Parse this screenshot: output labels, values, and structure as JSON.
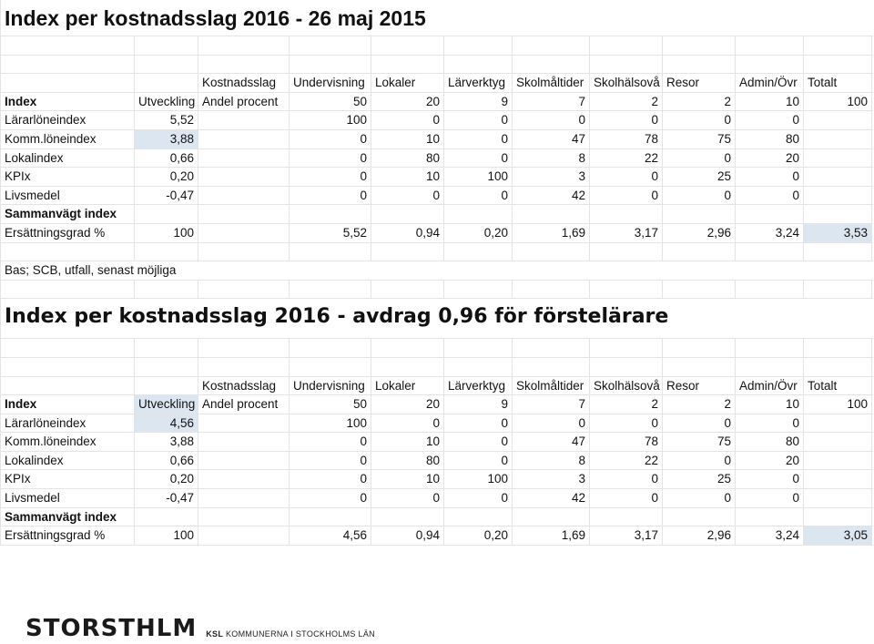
{
  "section1": {
    "title": "Index per kostnadsslag 2016 - 26 maj 2015",
    "headers": [
      "",
      "",
      "Kostnadsslag",
      "Undervisning",
      "Lokaler",
      "Lärverktyg",
      "Skolmåltider",
      "Skolhälsovå",
      "Resor",
      "Admin/Övr",
      "Totalt"
    ],
    "index_row": [
      "Index",
      "Utveckling",
      "Andel procent",
      "50",
      "20",
      "9",
      "7",
      "2",
      "2",
      "10",
      "100"
    ],
    "rows": [
      [
        "Lärarlöneindex",
        "5,52",
        "",
        "100",
        "0",
        "0",
        "0",
        "0",
        "0",
        "0",
        ""
      ],
      [
        "Komm.löneindex",
        "3,88",
        "",
        "0",
        "10",
        "0",
        "47",
        "78",
        "75",
        "80",
        ""
      ],
      [
        "Lokalindex",
        "0,66",
        "",
        "0",
        "80",
        "0",
        "8",
        "22",
        "0",
        "20",
        ""
      ],
      [
        "KPIx",
        "0,20",
        "",
        "0",
        "10",
        "100",
        "3",
        "0",
        "25",
        "0",
        ""
      ],
      [
        "Livsmedel",
        "-0,47",
        "",
        "0",
        "0",
        "0",
        "42",
        "0",
        "0",
        "0",
        ""
      ]
    ],
    "weighted_label": "Sammanvägt index",
    "comp_row": [
      "Ersättningsgrad %",
      "100",
      "",
      "5,52",
      "0,94",
      "0,20",
      "1,69",
      "3,17",
      "2,96",
      "3,24",
      "3,53"
    ]
  },
  "source_note": "Bas; SCB, utfall, senast möjliga",
  "section2": {
    "title": "Index per kostnadsslag 2016 -  avdrag 0,96 för förstelärare",
    "headers": [
      "",
      "",
      "Kostnadsslag",
      "Undervisning",
      "Lokaler",
      "Lärverktyg",
      "Skolmåltider",
      "Skolhälsovå",
      "Resor",
      "Admin/Övr",
      "Totalt"
    ],
    "index_row": [
      "Index",
      "Utveckling",
      "Andel procent",
      "50",
      "20",
      "9",
      "7",
      "2",
      "2",
      "10",
      "100"
    ],
    "rows": [
      [
        "Lärarlöneindex",
        "4,56",
        "",
        "100",
        "0",
        "0",
        "0",
        "0",
        "0",
        "0",
        ""
      ],
      [
        "Komm.löneindex",
        "3,88",
        "",
        "0",
        "10",
        "0",
        "47",
        "78",
        "75",
        "80",
        ""
      ],
      [
        "Lokalindex",
        "0,66",
        "",
        "0",
        "80",
        "0",
        "8",
        "22",
        "0",
        "20",
        ""
      ],
      [
        "KPIx",
        "0,20",
        "",
        "0",
        "10",
        "100",
        "3",
        "0",
        "25",
        "0",
        ""
      ],
      [
        "Livsmedel",
        "-0,47",
        "",
        "0",
        "0",
        "0",
        "42",
        "0",
        "0",
        "0",
        ""
      ]
    ],
    "weighted_label": "Sammanvägt index",
    "comp_row": [
      "Ersättningsgrad %",
      "100",
      "",
      "4,56",
      "0,94",
      "0,20",
      "1,69",
      "3,17",
      "2,96",
      "3,24",
      "3,05"
    ]
  },
  "footer": {
    "logo_main": "STORSTHLM",
    "logo_ksl": "KSL",
    "logo_sub": "KOMMUNERNA I STOCKHOLMS LÄN"
  },
  "colors": {
    "highlight": "#dce6f1",
    "gridline": "#e4e4e4"
  }
}
